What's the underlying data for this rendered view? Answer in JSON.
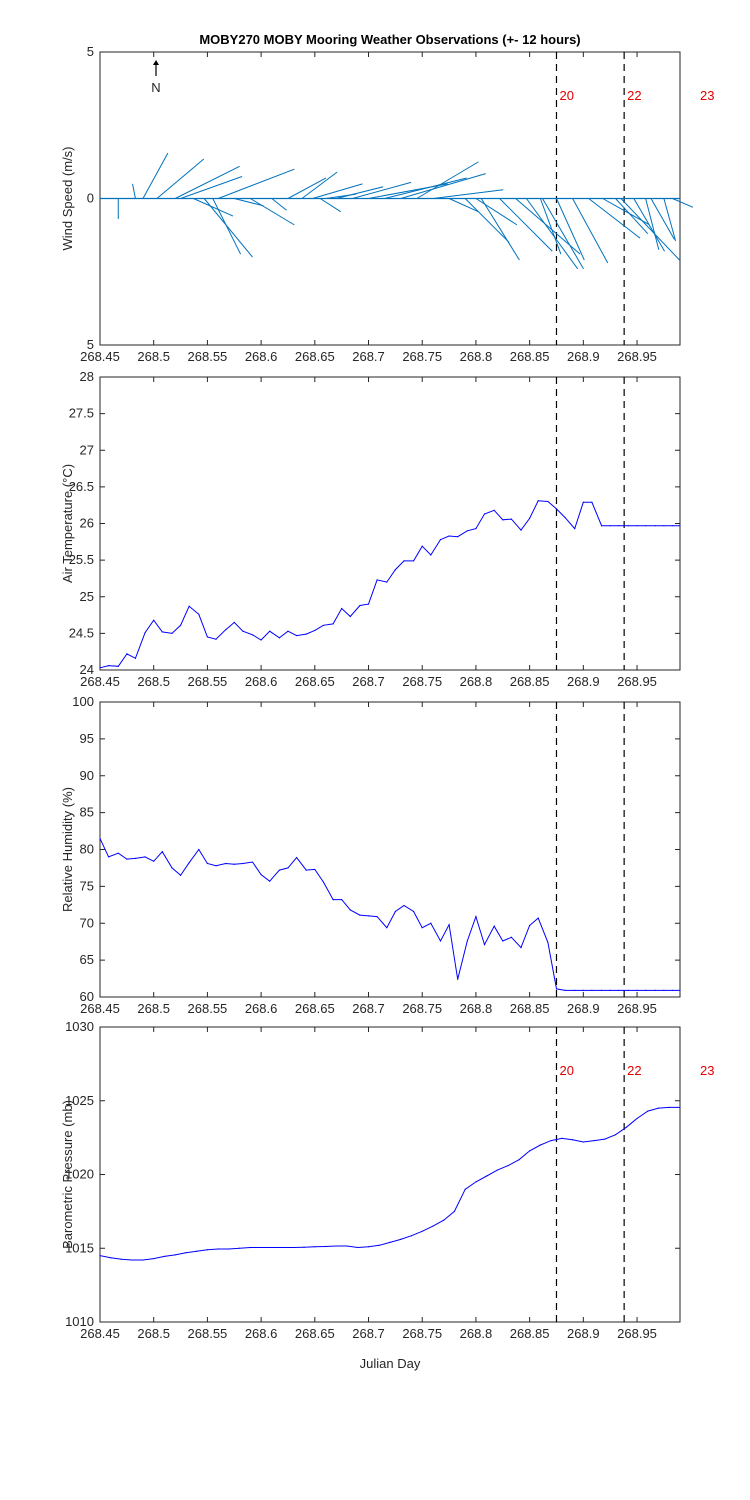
{
  "title": "MOBY270 MOBY Mooring Weather Observations (+- 12 hours)",
  "north_label": "N",
  "xlabel": "Julian Day",
  "x_ticks": [
    268.45,
    268.5,
    268.55,
    268.6,
    268.65,
    268.7,
    268.75,
    268.8,
    268.85,
    268.9,
    268.95
  ],
  "x_tick_labels": [
    "268.45",
    "268.5",
    "268.55",
    "268.6",
    "268.65",
    "268.7",
    "268.75",
    "268.8",
    "268.85",
    "268.9",
    "268.95"
  ],
  "colors": {
    "wind": "#0072BD",
    "line": "#0000FF",
    "marker_text": "#E00000",
    "axis": "#262626"
  },
  "chart_data": [
    {
      "type": "quiver",
      "panel": "wind",
      "ylabel": "Wind Speed (m/s)",
      "xlim": [
        268.45,
        268.99
      ],
      "ylim": [
        -5,
        5
      ],
      "y_ticks": [
        5,
        0,
        5
      ],
      "y_tick_labels": [
        "5",
        "0",
        "5"
      ],
      "grid": false,
      "vertical_markers": [
        {
          "x": 268.875,
          "label": "20"
        },
        {
          "x": 268.938,
          "label": "22"
        },
        {
          "x": 269.0,
          "label": "23"
        }
      ],
      "vectors": [
        {
          "x": 268.467,
          "u": 0.0,
          "v": -0.7
        },
        {
          "x": 268.483,
          "u": -0.1,
          "v": 0.5
        },
        {
          "x": 268.49,
          "u": 0.85,
          "v": 1.55
        },
        {
          "x": 268.503,
          "u": 1.6,
          "v": 1.35
        },
        {
          "x": 268.52,
          "u": 2.2,
          "v": 1.1
        },
        {
          "x": 268.525,
          "u": 2.1,
          "v": 0.75
        },
        {
          "x": 268.537,
          "u": 1.35,
          "v": -0.6
        },
        {
          "x": 268.547,
          "u": 1.65,
          "v": -2.0
        },
        {
          "x": 268.555,
          "u": 0.95,
          "v": -1.9
        },
        {
          "x": 268.56,
          "u": 2.6,
          "v": 1.0
        },
        {
          "x": 268.575,
          "u": 1.0,
          "v": -0.25
        },
        {
          "x": 268.59,
          "u": 1.5,
          "v": -0.9
        },
        {
          "x": 268.61,
          "u": 0.5,
          "v": -0.4
        },
        {
          "x": 268.625,
          "u": 1.3,
          "v": 0.7
        },
        {
          "x": 268.638,
          "u": 1.2,
          "v": 0.9
        },
        {
          "x": 268.648,
          "u": 1.7,
          "v": 0.5
        },
        {
          "x": 268.655,
          "u": 0.7,
          "v": -0.45
        },
        {
          "x": 268.66,
          "u": 1.05,
          "v": 0.15
        },
        {
          "x": 268.67,
          "u": 1.6,
          "v": 0.4
        },
        {
          "x": 268.685,
          "u": 2.0,
          "v": 0.55
        },
        {
          "x": 268.7,
          "u": 2.7,
          "v": 0.5
        },
        {
          "x": 268.715,
          "u": 2.8,
          "v": 0.7
        },
        {
          "x": 268.73,
          "u": 2.9,
          "v": 0.85
        },
        {
          "x": 268.745,
          "u": 2.1,
          "v": 1.25
        },
        {
          "x": 268.76,
          "u": 2.4,
          "v": 0.3
        },
        {
          "x": 268.775,
          "u": 1.0,
          "v": -0.45
        },
        {
          "x": 268.79,
          "u": 1.5,
          "v": -1.5
        },
        {
          "x": 268.8,
          "u": 1.4,
          "v": -0.9
        },
        {
          "x": 268.805,
          "u": 1.3,
          "v": -2.1
        },
        {
          "x": 268.822,
          "u": 1.8,
          "v": -1.8
        },
        {
          "x": 268.837,
          "u": 2.2,
          "v": -1.9
        },
        {
          "x": 268.847,
          "u": 1.75,
          "v": -2.4
        },
        {
          "x": 268.86,
          "u": 0.7,
          "v": -1.9
        },
        {
          "x": 268.862,
          "u": 1.4,
          "v": -2.4
        },
        {
          "x": 268.875,
          "u": 0.95,
          "v": -2.1
        },
        {
          "x": 268.89,
          "u": 1.2,
          "v": -2.2
        },
        {
          "x": 268.905,
          "u": 1.75,
          "v": -1.35
        },
        {
          "x": 268.918,
          "u": 1.6,
          "v": -0.9
        },
        {
          "x": 268.93,
          "u": 1.1,
          "v": -1.2
        },
        {
          "x": 268.935,
          "u": 2.0,
          "v": -2.1
        },
        {
          "x": 268.947,
          "u": 1.05,
          "v": -1.8
        },
        {
          "x": 268.958,
          "u": 0.45,
          "v": -1.75
        },
        {
          "x": 268.963,
          "u": 0.8,
          "v": -1.4
        },
        {
          "x": 268.975,
          "u": 0.4,
          "v": -1.45
        },
        {
          "x": 268.983,
          "u": 0.7,
          "v": -0.3
        }
      ]
    },
    {
      "type": "line",
      "panel": "air-temperature",
      "ylabel": "Air Temperature (°C)",
      "xlim": [
        268.45,
        268.99
      ],
      "ylim": [
        24,
        28
      ],
      "y_ticks": [
        24,
        24.5,
        25,
        25.5,
        26,
        26.5,
        27,
        27.5,
        28
      ],
      "y_tick_labels": [
        "24",
        "24.5",
        "25",
        "25.5",
        "26",
        "26.5",
        "27",
        "27.5",
        "28"
      ],
      "grid": false,
      "vertical_markers": [
        268.875,
        268.938
      ],
      "x": [
        268.45,
        268.458,
        268.467,
        268.475,
        268.483,
        268.492,
        268.5,
        268.508,
        268.517,
        268.525,
        268.533,
        268.542,
        268.55,
        268.558,
        268.567,
        268.575,
        268.583,
        268.592,
        268.6,
        268.608,
        268.617,
        268.625,
        268.633,
        268.642,
        268.65,
        268.658,
        268.667,
        268.675,
        268.683,
        268.692,
        268.7,
        268.708,
        268.717,
        268.725,
        268.733,
        268.742,
        268.75,
        268.758,
        268.767,
        268.775,
        268.783,
        268.792,
        268.8,
        268.808,
        268.817,
        268.825,
        268.833,
        268.842,
        268.85,
        268.858,
        268.867,
        268.875,
        268.883,
        268.892,
        268.9,
        268.908,
        268.917,
        268.925,
        268.933,
        268.942,
        268.95,
        268.958,
        268.967,
        268.975,
        268.983,
        268.99
      ],
      "y": [
        24.03,
        24.06,
        24.05,
        24.22,
        24.16,
        24.51,
        24.68,
        24.52,
        24.5,
        24.61,
        24.87,
        24.76,
        24.45,
        24.42,
        24.55,
        24.65,
        24.53,
        24.48,
        24.41,
        24.53,
        24.44,
        24.53,
        24.47,
        24.49,
        24.54,
        24.61,
        24.63,
        24.84,
        24.73,
        24.88,
        24.9,
        25.23,
        25.2,
        25.37,
        25.49,
        25.49,
        25.69,
        25.57,
        25.78,
        25.83,
        25.82,
        25.9,
        25.93,
        26.13,
        26.18,
        26.05,
        26.06,
        25.91,
        26.07,
        26.31,
        26.3,
        26.2,
        26.08,
        25.93,
        26.29,
        26.29,
        25.97,
        25.97,
        25.97,
        25.97,
        25.97,
        25.97,
        25.97,
        25.97,
        25.97,
        25.97
      ]
    },
    {
      "type": "line",
      "panel": "relative-humidity",
      "ylabel": "Relative Humidity (%)",
      "xlim": [
        268.45,
        268.99
      ],
      "ylim": [
        60,
        100
      ],
      "y_ticks": [
        60,
        65,
        70,
        75,
        80,
        85,
        90,
        95,
        100
      ],
      "y_tick_labels": [
        "60",
        "65",
        "70",
        "75",
        "80",
        "85",
        "90",
        "95",
        "100"
      ],
      "grid": false,
      "vertical_markers": [
        268.875,
        268.938
      ],
      "x": [
        268.45,
        268.458,
        268.467,
        268.475,
        268.483,
        268.492,
        268.5,
        268.508,
        268.517,
        268.525,
        268.533,
        268.542,
        268.55,
        268.558,
        268.567,
        268.575,
        268.583,
        268.592,
        268.6,
        268.608,
        268.617,
        268.625,
        268.633,
        268.642,
        268.65,
        268.658,
        268.667,
        268.675,
        268.683,
        268.692,
        268.7,
        268.708,
        268.717,
        268.725,
        268.733,
        268.742,
        268.75,
        268.758,
        268.767,
        268.775,
        268.783,
        268.792,
        268.8,
        268.808,
        268.817,
        268.825,
        268.833,
        268.842,
        268.85,
        268.858,
        268.867,
        268.875,
        268.883,
        268.892,
        268.9,
        268.908,
        268.917,
        268.925,
        268.933,
        268.942,
        268.95,
        268.958,
        268.967,
        268.975,
        268.983,
        268.99
      ],
      "y": [
        81.5,
        79.0,
        79.5,
        78.7,
        78.8,
        79.0,
        78.4,
        79.7,
        77.5,
        76.5,
        78.2,
        80.0,
        78.1,
        77.8,
        78.1,
        78.0,
        78.1,
        78.3,
        76.6,
        75.7,
        77.2,
        77.5,
        78.9,
        77.2,
        77.3,
        75.6,
        73.2,
        73.2,
        71.8,
        71.1,
        71.0,
        70.9,
        69.4,
        71.6,
        72.4,
        71.6,
        69.4,
        70.0,
        67.6,
        69.8,
        62.4,
        67.6,
        70.9,
        67.1,
        69.6,
        67.6,
        68.1,
        66.7,
        69.7,
        70.7,
        67.4,
        61.1,
        60.9,
        60.9,
        60.9,
        60.9,
        60.9,
        60.9,
        60.9,
        60.9,
        60.9,
        60.9,
        60.9,
        60.9,
        60.9,
        60.9
      ]
    },
    {
      "type": "line",
      "panel": "barometric-pressure",
      "ylabel": "Barometric Pressure (mb)",
      "xlim": [
        268.45,
        268.99
      ],
      "ylim": [
        1010,
        1030
      ],
      "y_ticks": [
        1010,
        1015,
        1020,
        1025,
        1030
      ],
      "y_tick_labels": [
        "1010",
        "1015",
        "1020",
        "1025",
        "1030"
      ],
      "grid": false,
      "vertical_markers": [
        {
          "x": 268.875,
          "label": "20"
        },
        {
          "x": 268.938,
          "label": "22"
        },
        {
          "x": 269.0,
          "label": "23"
        }
      ],
      "x": [
        268.45,
        268.46,
        268.47,
        268.48,
        268.49,
        268.5,
        268.51,
        268.52,
        268.53,
        268.54,
        268.55,
        268.56,
        268.57,
        268.58,
        268.59,
        268.6,
        268.61,
        268.62,
        268.63,
        268.64,
        268.65,
        268.66,
        268.67,
        268.68,
        268.69,
        268.7,
        268.71,
        268.72,
        268.73,
        268.74,
        268.75,
        268.76,
        268.77,
        268.78,
        268.79,
        268.8,
        268.81,
        268.82,
        268.83,
        268.84,
        268.85,
        268.86,
        268.87,
        268.88,
        268.89,
        268.9,
        268.91,
        268.92,
        268.93,
        268.94,
        268.95,
        268.96,
        268.97,
        268.98,
        268.99
      ],
      "y": [
        1014.5,
        1014.35,
        1014.25,
        1014.2,
        1014.2,
        1014.3,
        1014.45,
        1014.55,
        1014.7,
        1014.8,
        1014.9,
        1014.95,
        1014.95,
        1015.0,
        1015.05,
        1015.05,
        1015.05,
        1015.05,
        1015.05,
        1015.07,
        1015.1,
        1015.12,
        1015.15,
        1015.15,
        1015.05,
        1015.1,
        1015.2,
        1015.4,
        1015.6,
        1015.85,
        1016.15,
        1016.5,
        1016.9,
        1017.5,
        1019.0,
        1019.5,
        1019.9,
        1020.3,
        1020.6,
        1021.0,
        1021.6,
        1022.0,
        1022.3,
        1022.45,
        1022.35,
        1022.2,
        1022.3,
        1022.4,
        1022.7,
        1023.2,
        1023.8,
        1024.3,
        1024.5,
        1024.55,
        1024.55
      ]
    }
  ]
}
